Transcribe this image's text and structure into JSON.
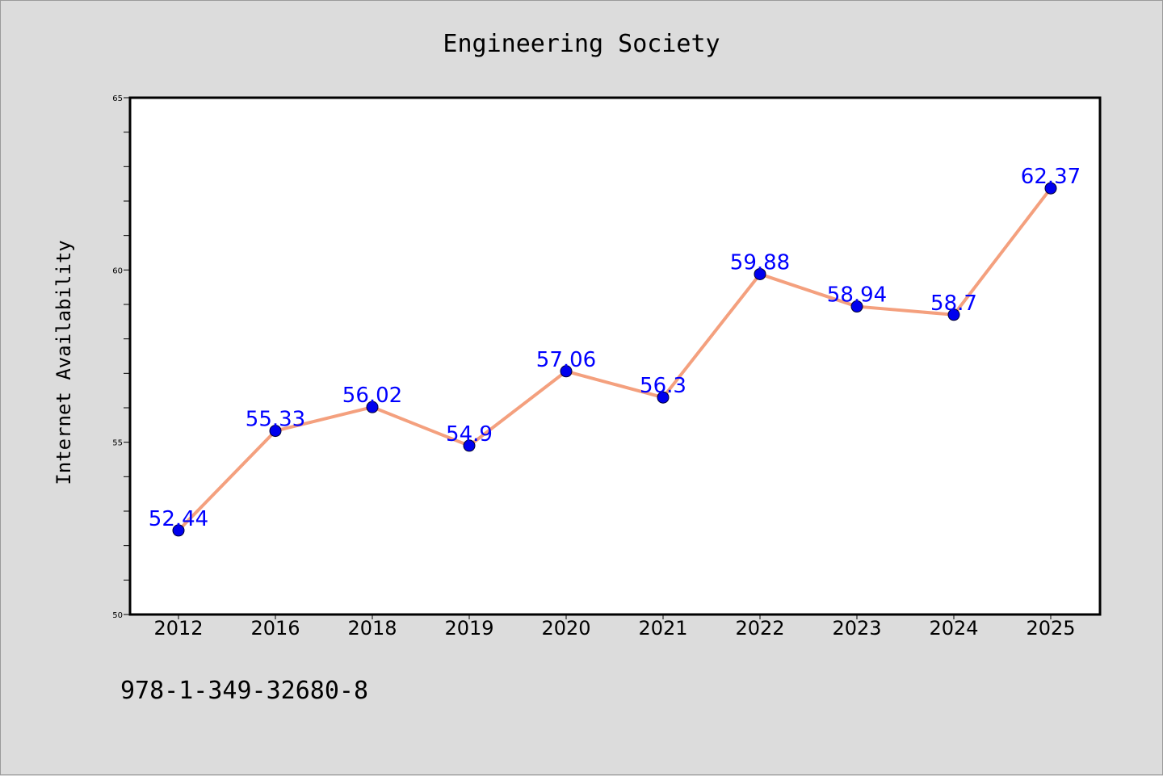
{
  "chart_data": {
    "type": "line",
    "title": "Engineering Society",
    "xlabel": "",
    "ylabel": "Internet Availability",
    "categories": [
      "2012",
      "2016",
      "2018",
      "2019",
      "2020",
      "2021",
      "2022",
      "2023",
      "2024",
      "2025"
    ],
    "series": [
      {
        "values": [
          52.44,
          55.33,
          56.02,
          54.9,
          57.06,
          56.3,
          59.88,
          58.94,
          58.7,
          62.37
        ],
        "labels": [
          "52.44",
          "55.33",
          "56.02",
          "54.9",
          "57.06",
          "56.3",
          "59.88",
          "58.94",
          "58.7",
          "62.37"
        ]
      }
    ],
    "ylim": [
      50,
      65
    ],
    "yticks": [
      "50",
      "55",
      "60",
      "65"
    ],
    "grid": false,
    "colors": {
      "line": "#f4a07e",
      "marker": "#0000ee",
      "label": "#0000ff",
      "background": "#dcdcdc",
      "plot_bg": "#ffffff"
    }
  },
  "footer": {
    "isbn": "978-1-349-32680-8"
  }
}
